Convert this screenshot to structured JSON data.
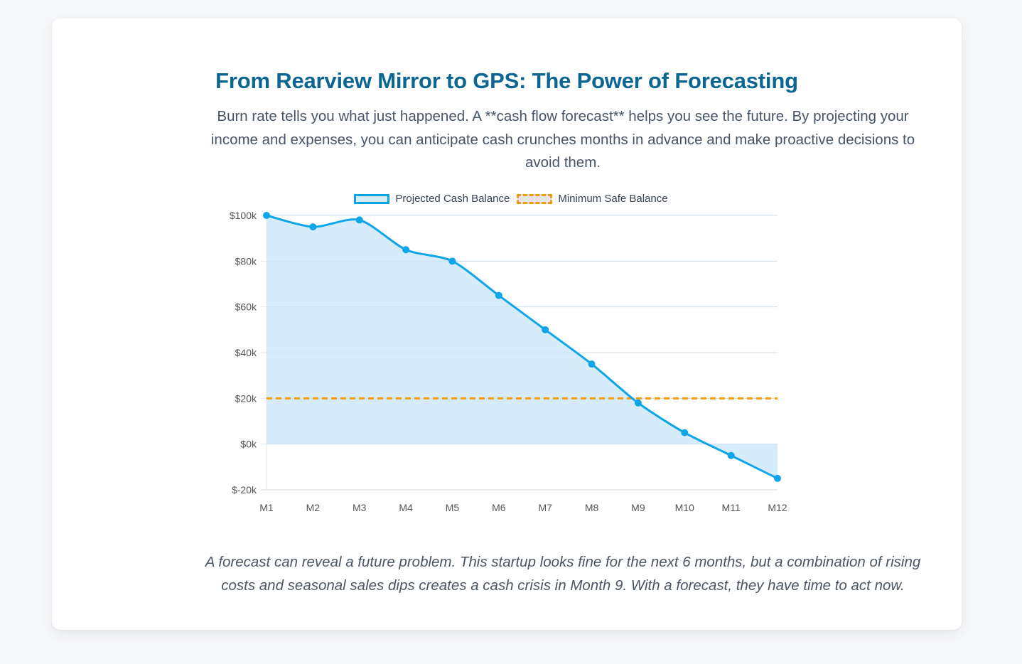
{
  "header": {
    "title": "From Rearview Mirror to GPS: The Power of Forecasting",
    "intro": "Burn rate tells you what just happened. A **cash flow forecast** helps you see the future. By projecting your income and expenses, you can anticipate cash crunches months in advance and make proactive decisions to avoid them."
  },
  "caption": "A forecast can reveal a future problem. This startup looks fine for the next 6 months, but a combination of rising costs and seasonal sales dips creates a cash crisis in Month 9. With a forecast, they have time to act now.",
  "colors": {
    "title": "#0b6694",
    "line": "#0ea5e9",
    "fill": "#d6ecfb",
    "threshold": "#f59e0b"
  },
  "chart_data": {
    "type": "line",
    "title": "",
    "xlabel": "",
    "ylabel": "",
    "categories": [
      "M1",
      "M2",
      "M3",
      "M4",
      "M5",
      "M6",
      "M7",
      "M8",
      "M9",
      "M10",
      "M11",
      "M12"
    ],
    "series": [
      {
        "name": "Projected Cash Balance",
        "values": [
          100000,
          95000,
          98000,
          85000,
          80000,
          65000,
          50000,
          35000,
          18000,
          5000,
          -5000,
          -15000
        ],
        "style": "smooth line with area fill to zero, point markers"
      },
      {
        "name": "Minimum Safe Balance",
        "values": [
          20000,
          20000,
          20000,
          20000,
          20000,
          20000,
          20000,
          20000,
          20000,
          20000,
          20000,
          20000
        ],
        "style": "dashed line"
      }
    ],
    "ylim": [
      -20000,
      100000
    ],
    "yticks": [
      100000,
      80000,
      60000,
      40000,
      20000,
      0,
      -20000
    ],
    "ytick_labels": [
      "$100k",
      "$80k",
      "$60k",
      "$40k",
      "$20k",
      "$0k",
      "$-20k"
    ],
    "grid": true,
    "legend": "top-center"
  }
}
